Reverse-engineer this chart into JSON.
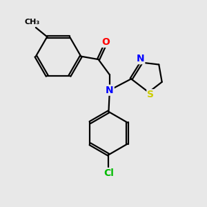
{
  "bg_color": "#e8e8e8",
  "bond_color": "#000000",
  "atom_colors": {
    "O": "#ff0000",
    "N": "#0000ff",
    "S": "#cccc00",
    "Cl": "#00bb00",
    "C": "#000000"
  },
  "line_width": 1.6,
  "doffset": 0.055
}
